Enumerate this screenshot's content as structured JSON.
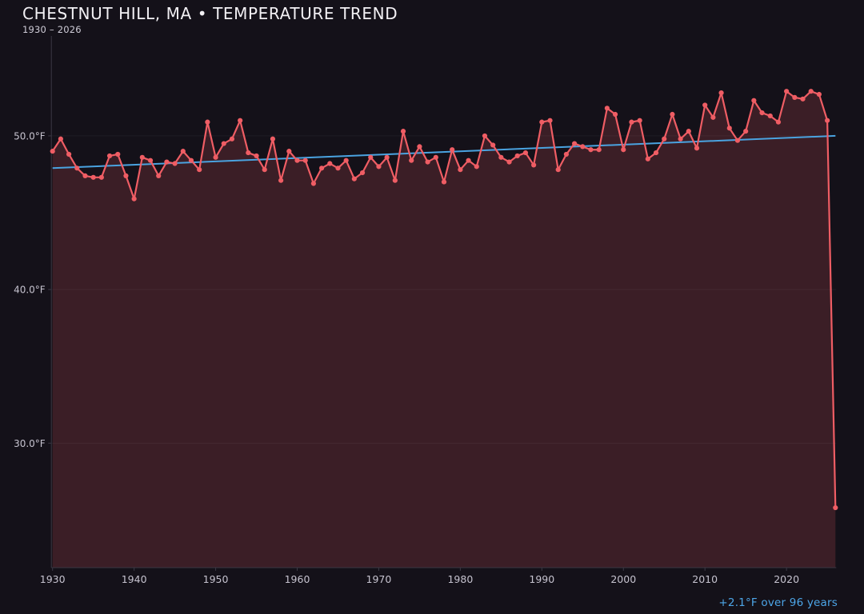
{
  "header": {
    "title": "CHESTNUT HILL, MA • TEMPERATURE TREND",
    "subtitle": "1930 – 2026"
  },
  "annotation": {
    "trend_summary": "+2.1°F over 96 years"
  },
  "colors": {
    "background": "#141119",
    "series_line": "#ef5d64",
    "series_fill_opacity": 0.18,
    "trend_line": "#4aa3e0",
    "title_text": "#f2f0f4",
    "subtitle_text": "#d0cdd8",
    "tick_text": "#c6c3cf",
    "annotation_text": "#4da6e8",
    "spine": "#3b3844",
    "gridline": "rgba(255,255,255,0.05)"
  },
  "chart_data": {
    "type": "line",
    "title": "CHESTNUT HILL, MA • TEMPERATURE TREND",
    "subtitle": "1930 – 2026",
    "xlabel": "",
    "ylabel": "",
    "legend": "none",
    "grid": "faint horizontal lines at labeled y ticks",
    "x_start": 1930,
    "x_end": 2026,
    "x": [
      1930,
      1931,
      1932,
      1933,
      1934,
      1935,
      1936,
      1937,
      1938,
      1939,
      1940,
      1941,
      1942,
      1943,
      1944,
      1945,
      1946,
      1947,
      1948,
      1949,
      1950,
      1951,
      1952,
      1953,
      1954,
      1955,
      1956,
      1957,
      1958,
      1959,
      1960,
      1961,
      1962,
      1963,
      1964,
      1965,
      1966,
      1967,
      1968,
      1969,
      1970,
      1971,
      1972,
      1973,
      1974,
      1975,
      1976,
      1977,
      1978,
      1979,
      1980,
      1981,
      1982,
      1983,
      1984,
      1985,
      1986,
      1987,
      1988,
      1989,
      1990,
      1991,
      1992,
      1993,
      1994,
      1995,
      1996,
      1997,
      1998,
      1999,
      2000,
      2001,
      2002,
      2003,
      2004,
      2005,
      2006,
      2007,
      2008,
      2009,
      2010,
      2011,
      2012,
      2013,
      2014,
      2015,
      2016,
      2017,
      2018,
      2019,
      2020,
      2021,
      2022,
      2023,
      2024,
      2025,
      2026
    ],
    "series": [
      {
        "name": "annual-mean-temperature-F",
        "values": [
          49.0,
          49.8,
          48.8,
          47.9,
          47.4,
          47.3,
          47.3,
          48.7,
          48.8,
          47.4,
          45.9,
          48.6,
          48.4,
          47.4,
          48.3,
          48.2,
          49.0,
          48.4,
          47.8,
          50.9,
          48.6,
          49.5,
          49.8,
          51.0,
          48.9,
          48.7,
          47.8,
          49.8,
          47.1,
          49.0,
          48.4,
          48.4,
          46.9,
          47.9,
          48.2,
          47.9,
          48.4,
          47.2,
          47.6,
          48.6,
          48.0,
          48.6,
          47.1,
          50.3,
          48.4,
          49.3,
          48.3,
          48.6,
          47.0,
          49.1,
          47.8,
          48.4,
          48.0,
          50.0,
          49.4,
          48.6,
          48.3,
          48.7,
          48.9,
          48.1,
          50.9,
          51.0,
          47.8,
          48.8,
          49.5,
          49.3,
          49.1,
          49.1,
          51.8,
          51.4,
          49.1,
          50.9,
          51.0,
          48.5,
          48.9,
          49.8,
          51.4,
          49.8,
          50.3,
          49.2,
          52.0,
          51.2,
          52.8,
          50.5,
          49.7,
          50.3,
          52.3,
          51.5,
          51.3,
          50.9,
          52.9,
          52.5,
          52.4,
          52.9,
          52.7,
          51.0,
          25.8
        ]
      }
    ],
    "trend_line": {
      "x": [
        1930,
        2026
      ],
      "values": [
        47.9,
        50.0
      ],
      "label": "+2.1°F over 96 years"
    },
    "xticks": [
      1930,
      1940,
      1950,
      1960,
      1970,
      1980,
      1990,
      2000,
      2010,
      2020
    ],
    "yticks": [
      50,
      40,
      30
    ],
    "ytick_labels": [
      "50.0°F",
      "40.0°F",
      "30.0°F"
    ],
    "xlim": [
      1930,
      2026
    ],
    "ylim": [
      21.9,
      56.5
    ]
  }
}
